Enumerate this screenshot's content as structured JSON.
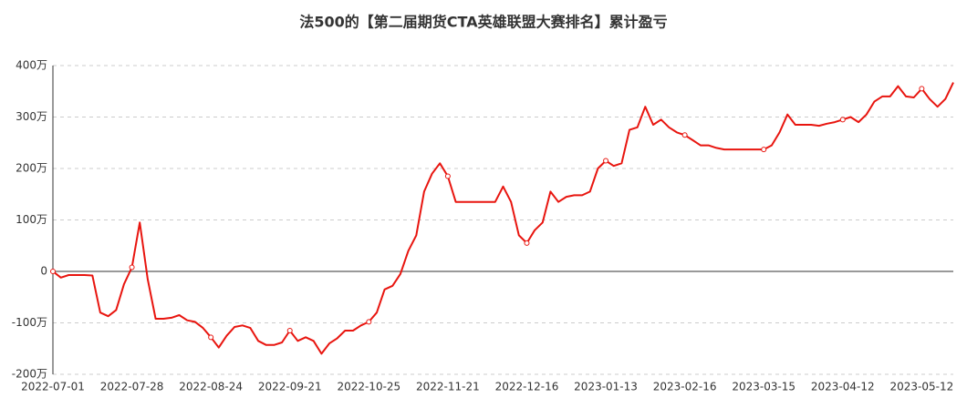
{
  "chart_data": {
    "type": "line",
    "title": "法500的【第二届期货CTA英雄联盟大赛排名】累计盈亏",
    "categories": [
      "2022-07-01",
      null,
      null,
      null,
      null,
      null,
      null,
      null,
      null,
      null,
      "2022-07-28",
      null,
      null,
      null,
      null,
      null,
      null,
      null,
      null,
      null,
      "2022-08-24",
      null,
      null,
      null,
      null,
      null,
      null,
      null,
      null,
      null,
      "2022-09-21",
      null,
      null,
      null,
      null,
      null,
      null,
      null,
      null,
      null,
      "2022-10-25",
      null,
      null,
      null,
      null,
      null,
      null,
      null,
      null,
      null,
      "2022-11-21",
      null,
      null,
      null,
      null,
      null,
      null,
      null,
      null,
      null,
      "2022-12-16",
      null,
      null,
      null,
      null,
      null,
      null,
      null,
      null,
      null,
      "2023-01-13",
      null,
      null,
      null,
      null,
      null,
      null,
      null,
      null,
      null,
      "2023-02-16",
      null,
      null,
      null,
      null,
      null,
      null,
      null,
      null,
      null,
      "2023-03-15",
      null,
      null,
      null,
      null,
      null,
      null,
      null,
      null,
      null,
      "2023-04-12",
      null,
      null,
      null,
      null,
      null,
      null,
      null,
      null,
      null,
      "2023-05-12",
      null,
      null,
      null,
      null
    ],
    "series": [
      {
        "name": "累计盈亏",
        "color": "#e8150f",
        "values": [
          0,
          -12,
          -7,
          -7,
          -7,
          -8,
          -80,
          -87,
          -75,
          -25,
          8,
          95,
          -15,
          -92,
          -92,
          -90,
          -85,
          -95,
          -98,
          -110,
          -128,
          -148,
          -125,
          -108,
          -105,
          -110,
          -135,
          -143,
          -143,
          -138,
          -115,
          -135,
          -128,
          -135,
          -160,
          -140,
          -130,
          -115,
          -115,
          -105,
          -98,
          -80,
          -35,
          -28,
          -5,
          40,
          70,
          155,
          190,
          210,
          185,
          135,
          135,
          135,
          135,
          135,
          135,
          165,
          135,
          70,
          55,
          80,
          95,
          155,
          135,
          145,
          148,
          148,
          155,
          200,
          215,
          205,
          210,
          275,
          280,
          320,
          285,
          295,
          280,
          270,
          265,
          255,
          245,
          245,
          240,
          237,
          237,
          237,
          237,
          237,
          237,
          245,
          270,
          305,
          285,
          285,
          285,
          283,
          287,
          290,
          295,
          300,
          290,
          305,
          330,
          340,
          340,
          360,
          340,
          338,
          355,
          335,
          320,
          335,
          367
        ]
      }
    ],
    "ylim": [
      -200,
      400
    ],
    "yticks": [
      {
        "value": -200,
        "label": "-200万"
      },
      {
        "value": -100,
        "label": "-100万"
      },
      {
        "value": 0,
        "label": "0"
      },
      {
        "value": 100,
        "label": "100万"
      },
      {
        "value": 200,
        "label": "200万"
      },
      {
        "value": 300,
        "label": "300万"
      },
      {
        "value": 400,
        "label": "400万"
      }
    ],
    "grid": true
  }
}
